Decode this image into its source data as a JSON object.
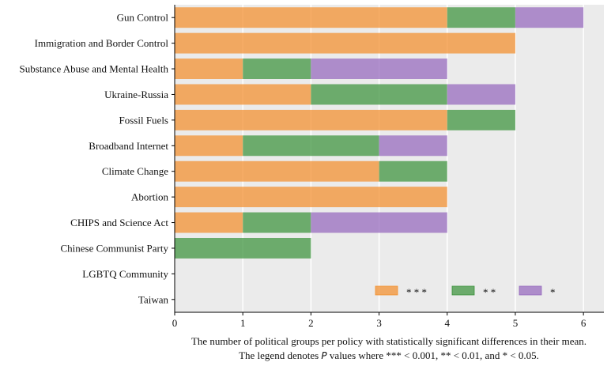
{
  "chart_data": {
    "type": "bar",
    "orientation": "horizontal",
    "stacked": true,
    "categories": [
      "Gun Control",
      "Immigration and Border Control",
      "Substance Abuse and Mental Health",
      "Ukraine-Russia",
      "Fossil Fuels",
      "Broadband Internet",
      "Climate Change",
      "Abortion",
      "CHIPS and Science Act",
      "Chinese Communist Party",
      "LGBTQ Community",
      "Taiwan"
    ],
    "series": [
      {
        "name": "* * *",
        "color": "#f28e2b",
        "values": [
          4,
          5,
          1,
          2,
          4,
          1,
          3,
          4,
          1,
          0,
          0,
          0
        ]
      },
      {
        "name": "* *",
        "color": "#3a923a",
        "values": [
          1,
          0,
          1,
          2,
          1,
          2,
          1,
          0,
          1,
          2,
          0,
          0
        ]
      },
      {
        "name": "*",
        "color": "#9467bd",
        "values": [
          1,
          0,
          2,
          1,
          0,
          1,
          0,
          0,
          2,
          0,
          0,
          0
        ]
      }
    ],
    "xlabel_line1": "The number of political groups per policy with statistically significant differences in their mean.",
    "xlabel_line2_prefix": "The legend denotes ",
    "xlabel_line2_p": "P",
    "xlabel_line2_suffix": " values where *** < 0.001, ** < 0.01, and * < 0.05.",
    "xlim": [
      0,
      6.3
    ],
    "xticks": [
      0,
      1,
      2,
      3,
      4,
      5,
      6
    ],
    "grid": "vertical",
    "legend_position": "bottom-right",
    "background": "#ebebeb"
  }
}
